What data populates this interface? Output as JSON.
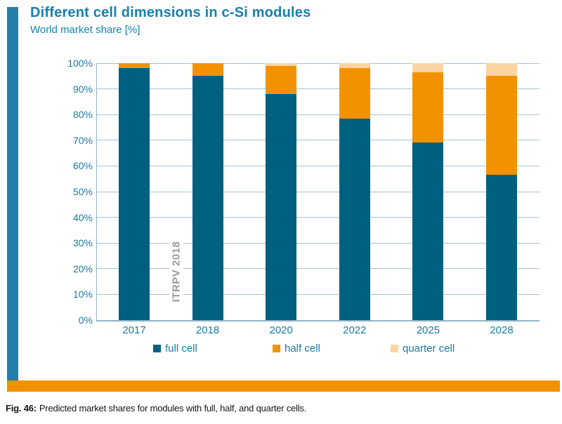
{
  "header": {
    "title": "Different cell dimensions in c-Si modules",
    "subtitle": "World market share [%]"
  },
  "chart_data": {
    "type": "bar",
    "stacked": true,
    "title": "Different cell dimensions in c-Si modules",
    "subtitle": "World market share [%]",
    "categories": [
      "2017",
      "2018",
      "2020",
      "2022",
      "2025",
      "2028"
    ],
    "series": [
      {
        "name": "full cell",
        "color": "#006080",
        "values": [
          98,
          95,
          88,
          78.5,
          69,
          56.5
        ]
      },
      {
        "name": "half cell",
        "color": "#f39200",
        "values": [
          2,
          5,
          11,
          19.5,
          27.5,
          38.5
        ]
      },
      {
        "name": "quarter cell",
        "color": "#fbd4a4",
        "values": [
          0,
          0,
          1,
          2,
          3.5,
          5
        ]
      }
    ],
    "ylim": [
      0,
      100
    ],
    "yticks": [
      "0%",
      "10%",
      "20%",
      "30%",
      "40%",
      "50%",
      "60%",
      "70%",
      "80%",
      "90%",
      "100%"
    ],
    "grid": true,
    "legend_position": "bottom",
    "watermark": "ITRPV 2018"
  },
  "footer": {
    "caption_label": "Fig. 46:",
    "caption_text": "Predicted market shares for modules with full, half, and quarter cells."
  },
  "colors": {
    "accent_bar": "#2380a8",
    "title_text": "#1580b0",
    "axis_text": "#1b7aa5",
    "grid_line": "#a5c4d4",
    "axis_line": "#8fb4c9",
    "watermark_text": "#9a9a9a",
    "bottom_rule": "#f29100"
  }
}
